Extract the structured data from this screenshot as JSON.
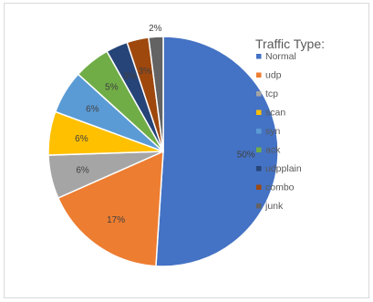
{
  "chart_data": {
    "type": "pie",
    "legend_title": "Traffic Type:",
    "legend_position": "right",
    "labels": [
      "Normal",
      "udp",
      "tcp",
      "scan",
      "syn",
      "ack",
      "udpplain",
      "combo",
      "junk"
    ],
    "values": [
      50,
      17,
      6,
      6,
      6,
      5,
      3,
      3,
      2
    ],
    "data_labels": [
      "50%",
      "17%",
      "6%",
      "6%",
      "6%",
      "5%",
      "3%",
      "3%",
      "2%"
    ],
    "colors": [
      "#4472C4",
      "#ED7D31",
      "#A5A5A5",
      "#FFC000",
      "#5B9BD5",
      "#70AD47",
      "#264478",
      "#9E480E",
      "#636363"
    ],
    "start_angle_deg": 0,
    "direction": "clockwise"
  }
}
